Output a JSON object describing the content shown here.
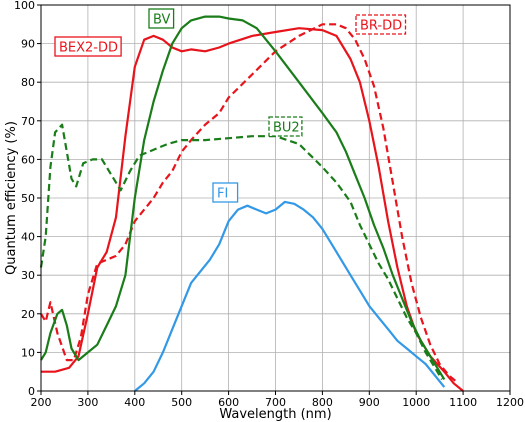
{
  "chart_data": {
    "type": "line",
    "title": "",
    "xlabel": "Wavelength (nm)",
    "ylabel": "Quantum efficiency (%)",
    "xlim": [
      200,
      1200
    ],
    "ylim": [
      0,
      100
    ],
    "xticks": [
      200,
      300,
      400,
      500,
      600,
      700,
      800,
      900,
      1000,
      1100,
      1200
    ],
    "yticks": [
      0,
      10,
      20,
      30,
      40,
      50,
      60,
      70,
      80,
      90,
      100
    ],
    "grid": true,
    "legend": "none",
    "series": [
      {
        "name": "BEX2-DD",
        "color": "#e8141c",
        "style": "solid",
        "label_box": "solid",
        "points": [
          [
            200,
            5
          ],
          [
            230,
            5
          ],
          [
            260,
            6
          ],
          [
            280,
            9
          ],
          [
            300,
            20
          ],
          [
            320,
            32
          ],
          [
            340,
            36
          ],
          [
            360,
            45
          ],
          [
            380,
            66
          ],
          [
            400,
            84
          ],
          [
            420,
            91
          ],
          [
            440,
            92
          ],
          [
            460,
            91
          ],
          [
            480,
            89
          ],
          [
            500,
            88
          ],
          [
            520,
            88.5
          ],
          [
            550,
            88
          ],
          [
            580,
            89
          ],
          [
            600,
            90
          ],
          [
            650,
            92
          ],
          [
            700,
            93
          ],
          [
            750,
            94
          ],
          [
            800,
            93.5
          ],
          [
            830,
            92
          ],
          [
            860,
            86
          ],
          [
            880,
            80
          ],
          [
            900,
            70
          ],
          [
            920,
            58
          ],
          [
            940,
            44
          ],
          [
            960,
            32
          ],
          [
            980,
            22
          ],
          [
            1000,
            15
          ],
          [
            1030,
            9
          ],
          [
            1060,
            5
          ],
          [
            1080,
            2
          ],
          [
            1100,
            0
          ]
        ]
      },
      {
        "name": "BR-DD",
        "color": "#e8141c",
        "style": "dashed",
        "label_box": "dashed",
        "points": [
          [
            200,
            20
          ],
          [
            210,
            18
          ],
          [
            220,
            23
          ],
          [
            235,
            15
          ],
          [
            255,
            8
          ],
          [
            270,
            8
          ],
          [
            285,
            14
          ],
          [
            300,
            25
          ],
          [
            320,
            33
          ],
          [
            340,
            34
          ],
          [
            360,
            35
          ],
          [
            380,
            38
          ],
          [
            400,
            44
          ],
          [
            420,
            47
          ],
          [
            440,
            50
          ],
          [
            460,
            54
          ],
          [
            480,
            57
          ],
          [
            500,
            62
          ],
          [
            520,
            65
          ],
          [
            550,
            69
          ],
          [
            580,
            72
          ],
          [
            600,
            76
          ],
          [
            650,
            82
          ],
          [
            700,
            88
          ],
          [
            750,
            92
          ],
          [
            800,
            95
          ],
          [
            830,
            95
          ],
          [
            850,
            94
          ],
          [
            870,
            91
          ],
          [
            890,
            86
          ],
          [
            910,
            79
          ],
          [
            930,
            68
          ],
          [
            950,
            54
          ],
          [
            970,
            40
          ],
          [
            990,
            28
          ],
          [
            1010,
            19
          ],
          [
            1030,
            12
          ],
          [
            1050,
            7
          ],
          [
            1070,
            4
          ],
          [
            1090,
            2
          ]
        ]
      },
      {
        "name": "BV",
        "color": "#1a7d1a",
        "style": "solid",
        "label_box": "solid",
        "points": [
          [
            200,
            8
          ],
          [
            210,
            10
          ],
          [
            220,
            15
          ],
          [
            235,
            20
          ],
          [
            245,
            21
          ],
          [
            255,
            17
          ],
          [
            265,
            11
          ],
          [
            280,
            8
          ],
          [
            300,
            10
          ],
          [
            320,
            12
          ],
          [
            340,
            17
          ],
          [
            360,
            22
          ],
          [
            380,
            30
          ],
          [
            400,
            50
          ],
          [
            420,
            65
          ],
          [
            440,
            75
          ],
          [
            460,
            83
          ],
          [
            480,
            90
          ],
          [
            500,
            94
          ],
          [
            520,
            96
          ],
          [
            550,
            97
          ],
          [
            580,
            97
          ],
          [
            600,
            96.5
          ],
          [
            630,
            96
          ],
          [
            660,
            94
          ],
          [
            700,
            88
          ],
          [
            750,
            80
          ],
          [
            800,
            72
          ],
          [
            830,
            67
          ],
          [
            850,
            62
          ],
          [
            870,
            56
          ],
          [
            890,
            50
          ],
          [
            910,
            43
          ],
          [
            930,
            37
          ],
          [
            950,
            30
          ],
          [
            970,
            24
          ],
          [
            990,
            18
          ],
          [
            1010,
            13
          ],
          [
            1030,
            9
          ],
          [
            1050,
            5
          ],
          [
            1060,
            3
          ]
        ]
      },
      {
        "name": "BU2",
        "color": "#1a7d1a",
        "style": "dashed",
        "label_box": "dashed",
        "points": [
          [
            200,
            32
          ],
          [
            210,
            40
          ],
          [
            220,
            58
          ],
          [
            230,
            67
          ],
          [
            245,
            69
          ],
          [
            255,
            62
          ],
          [
            265,
            55
          ],
          [
            275,
            53
          ],
          [
            290,
            59
          ],
          [
            310,
            60
          ],
          [
            330,
            60
          ],
          [
            350,
            56
          ],
          [
            370,
            52
          ],
          [
            390,
            57
          ],
          [
            410,
            61
          ],
          [
            430,
            62
          ],
          [
            450,
            63
          ],
          [
            470,
            64
          ],
          [
            500,
            65
          ],
          [
            550,
            65
          ],
          [
            600,
            65.5
          ],
          [
            650,
            66
          ],
          [
            700,
            66
          ],
          [
            750,
            64
          ],
          [
            800,
            58
          ],
          [
            830,
            54
          ],
          [
            860,
            49
          ],
          [
            880,
            43
          ],
          [
            900,
            38
          ],
          [
            920,
            33
          ],
          [
            940,
            29
          ],
          [
            960,
            24
          ],
          [
            980,
            19
          ],
          [
            1000,
            15
          ],
          [
            1020,
            10
          ],
          [
            1040,
            6
          ],
          [
            1055,
            3
          ]
        ]
      },
      {
        "name": "FI",
        "color": "#3399e6",
        "style": "solid",
        "label_box": "solid",
        "points": [
          [
            400,
            0
          ],
          [
            420,
            2
          ],
          [
            440,
            5
          ],
          [
            460,
            10
          ],
          [
            480,
            16
          ],
          [
            500,
            22
          ],
          [
            520,
            28
          ],
          [
            540,
            31
          ],
          [
            560,
            34
          ],
          [
            580,
            38
          ],
          [
            600,
            44
          ],
          [
            620,
            47
          ],
          [
            640,
            48
          ],
          [
            660,
            47
          ],
          [
            680,
            46
          ],
          [
            700,
            47
          ],
          [
            720,
            49
          ],
          [
            740,
            48.5
          ],
          [
            760,
            47
          ],
          [
            780,
            45
          ],
          [
            800,
            42
          ],
          [
            820,
            38
          ],
          [
            840,
            34
          ],
          [
            860,
            30
          ],
          [
            880,
            26
          ],
          [
            900,
            22
          ],
          [
            920,
            19
          ],
          [
            940,
            16
          ],
          [
            960,
            13
          ],
          [
            980,
            11
          ],
          [
            1000,
            9
          ],
          [
            1020,
            7
          ],
          [
            1040,
            4
          ],
          [
            1060,
            1
          ]
        ]
      }
    ]
  }
}
